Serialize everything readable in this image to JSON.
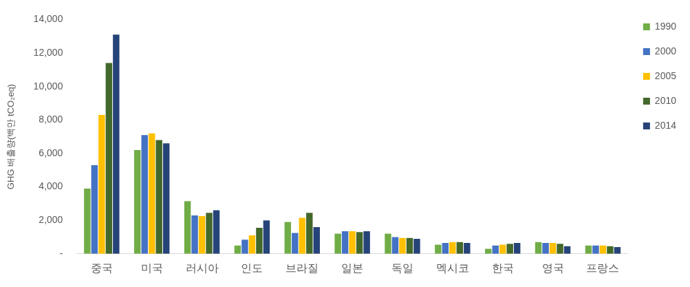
{
  "chart_data": {
    "type": "bar",
    "ylabel": "GHG 배출량(백만 tCO₂eq)",
    "categories": [
      "중국",
      "미국",
      "러시아",
      "인도",
      "브라질",
      "일본",
      "독일",
      "멕시코",
      "한국",
      "영국",
      "프랑스"
    ],
    "series": [
      {
        "name": "1990",
        "color": "#70ad47",
        "values": [
          3900,
          6200,
          3150,
          500,
          1900,
          1200,
          1200,
          550,
          300,
          700,
          500
        ]
      },
      {
        "name": "2000",
        "color": "#4472c4",
        "values": [
          5300,
          7100,
          2300,
          850,
          1250,
          1350,
          1000,
          650,
          500,
          650,
          500
        ]
      },
      {
        "name": "2005",
        "color": "#ffc000",
        "values": [
          8300,
          7200,
          2250,
          1100,
          2150,
          1350,
          950,
          700,
          550,
          650,
          500
        ]
      },
      {
        "name": "2010",
        "color": "#43682b",
        "values": [
          11400,
          6800,
          2450,
          1550,
          2450,
          1300,
          950,
          700,
          600,
          600,
          450
        ]
      },
      {
        "name": "2014",
        "color": "#264478",
        "values": [
          13100,
          6600,
          2600,
          2000,
          1600,
          1350,
          900,
          650,
          650,
          450,
          400
        ]
      }
    ],
    "ylim": [
      0,
      14000
    ],
    "yticks": [
      {
        "value": 0,
        "label": "-"
      },
      {
        "value": 2000,
        "label": "2,000"
      },
      {
        "value": 4000,
        "label": "4,000"
      },
      {
        "value": 6000,
        "label": "6,000"
      },
      {
        "value": 8000,
        "label": "8,000"
      },
      {
        "value": 10000,
        "label": "10,000"
      },
      {
        "value": 12000,
        "label": "12,000"
      },
      {
        "value": 14000,
        "label": "14,000"
      }
    ],
    "grid": false,
    "legend": "right"
  }
}
